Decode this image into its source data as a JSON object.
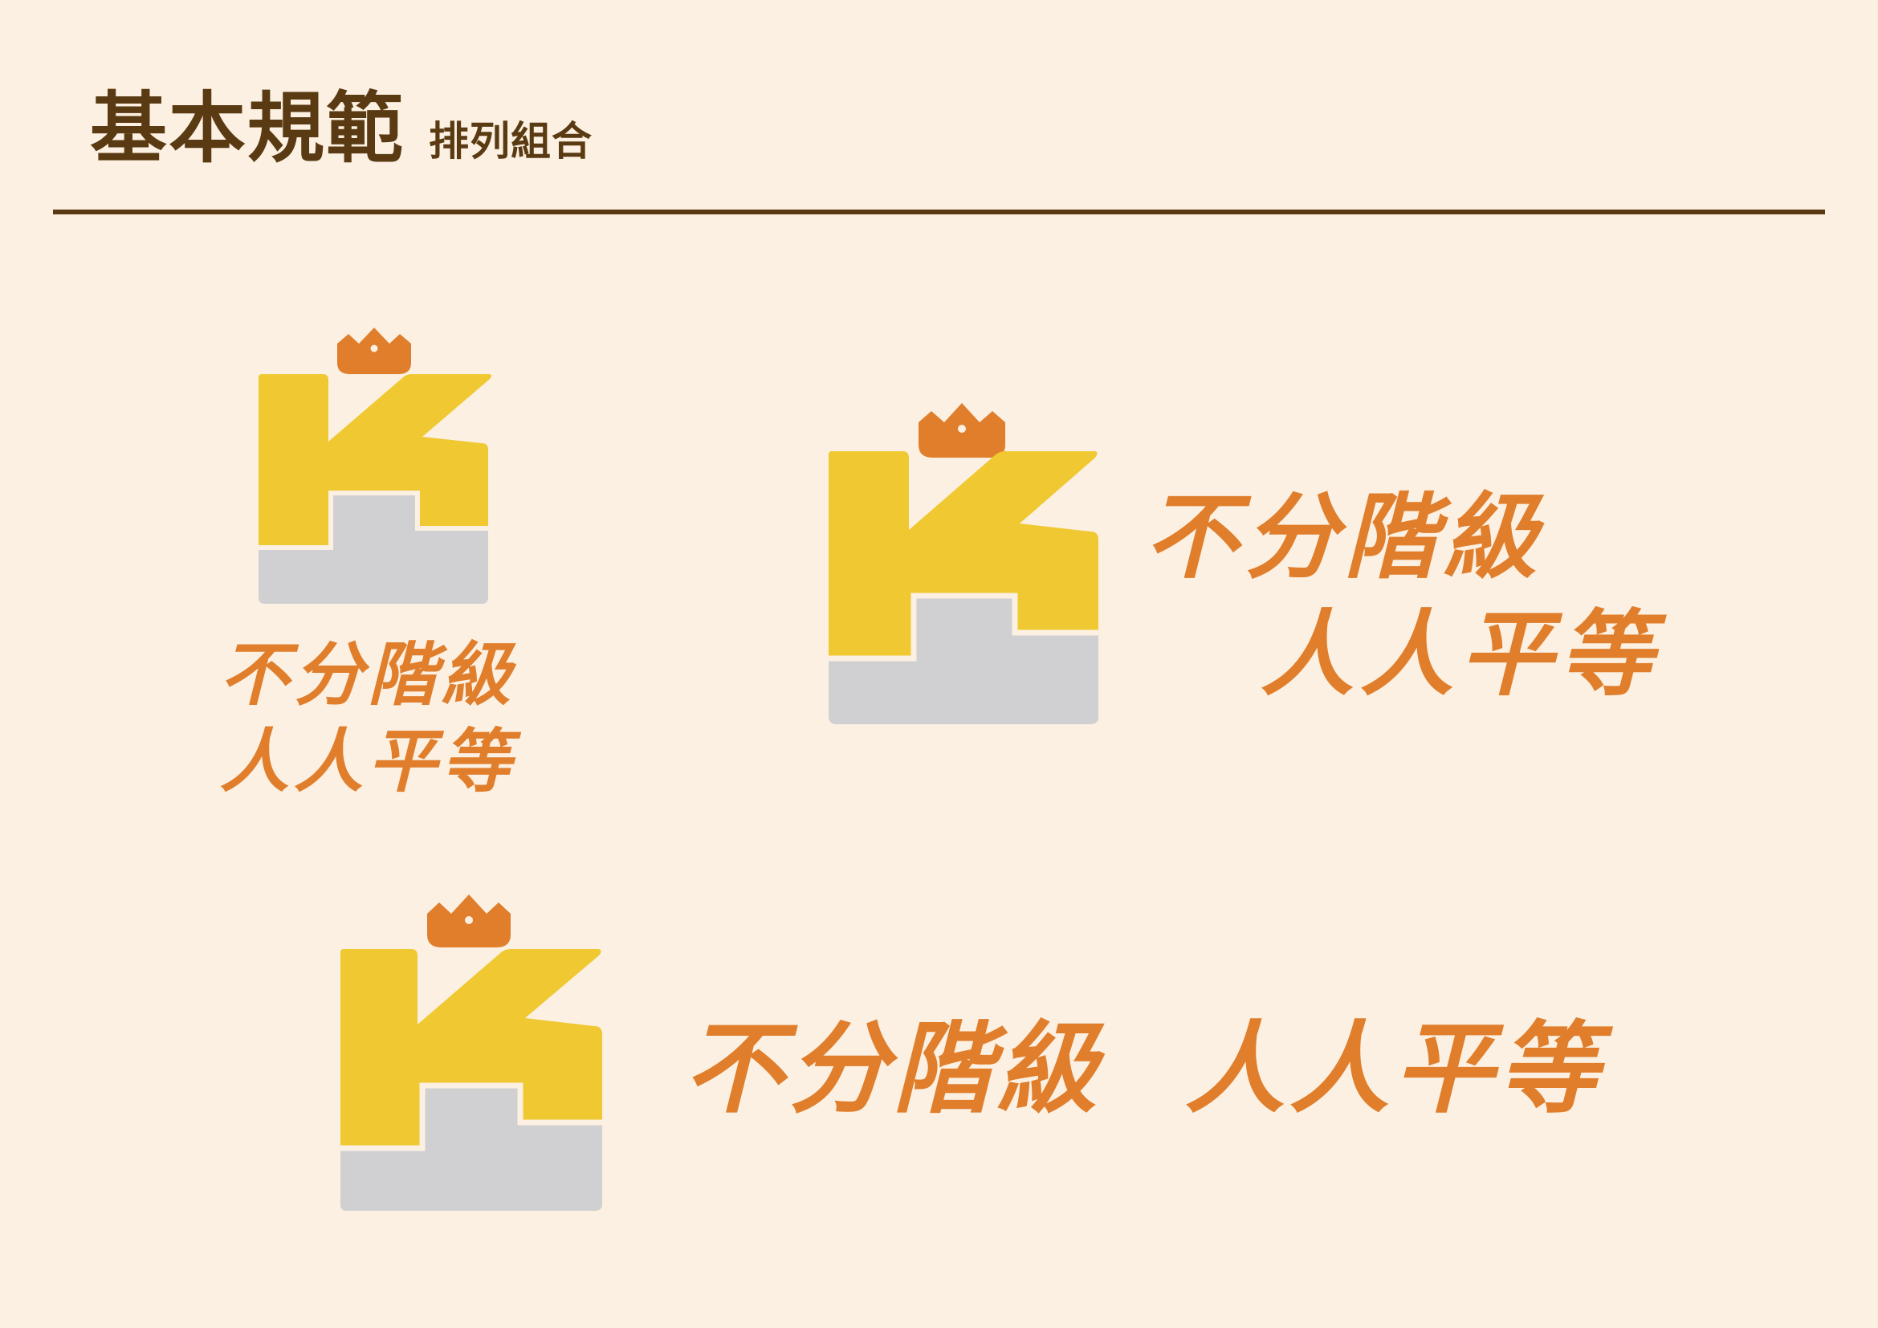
{
  "header": {
    "title": "基本規範",
    "subtitle": "排列組合"
  },
  "slogan": {
    "line1": "不分階級",
    "line2": "人人平等"
  },
  "colors": {
    "background": "#FBF0E2",
    "header_text": "#5A3A12",
    "logo_yellow": "#F0C832",
    "logo_gray": "#D0D0D2",
    "accent_orange": "#E07E2C"
  },
  "icons": [
    "crown-icon",
    "k-staircase-logo-icon"
  ]
}
